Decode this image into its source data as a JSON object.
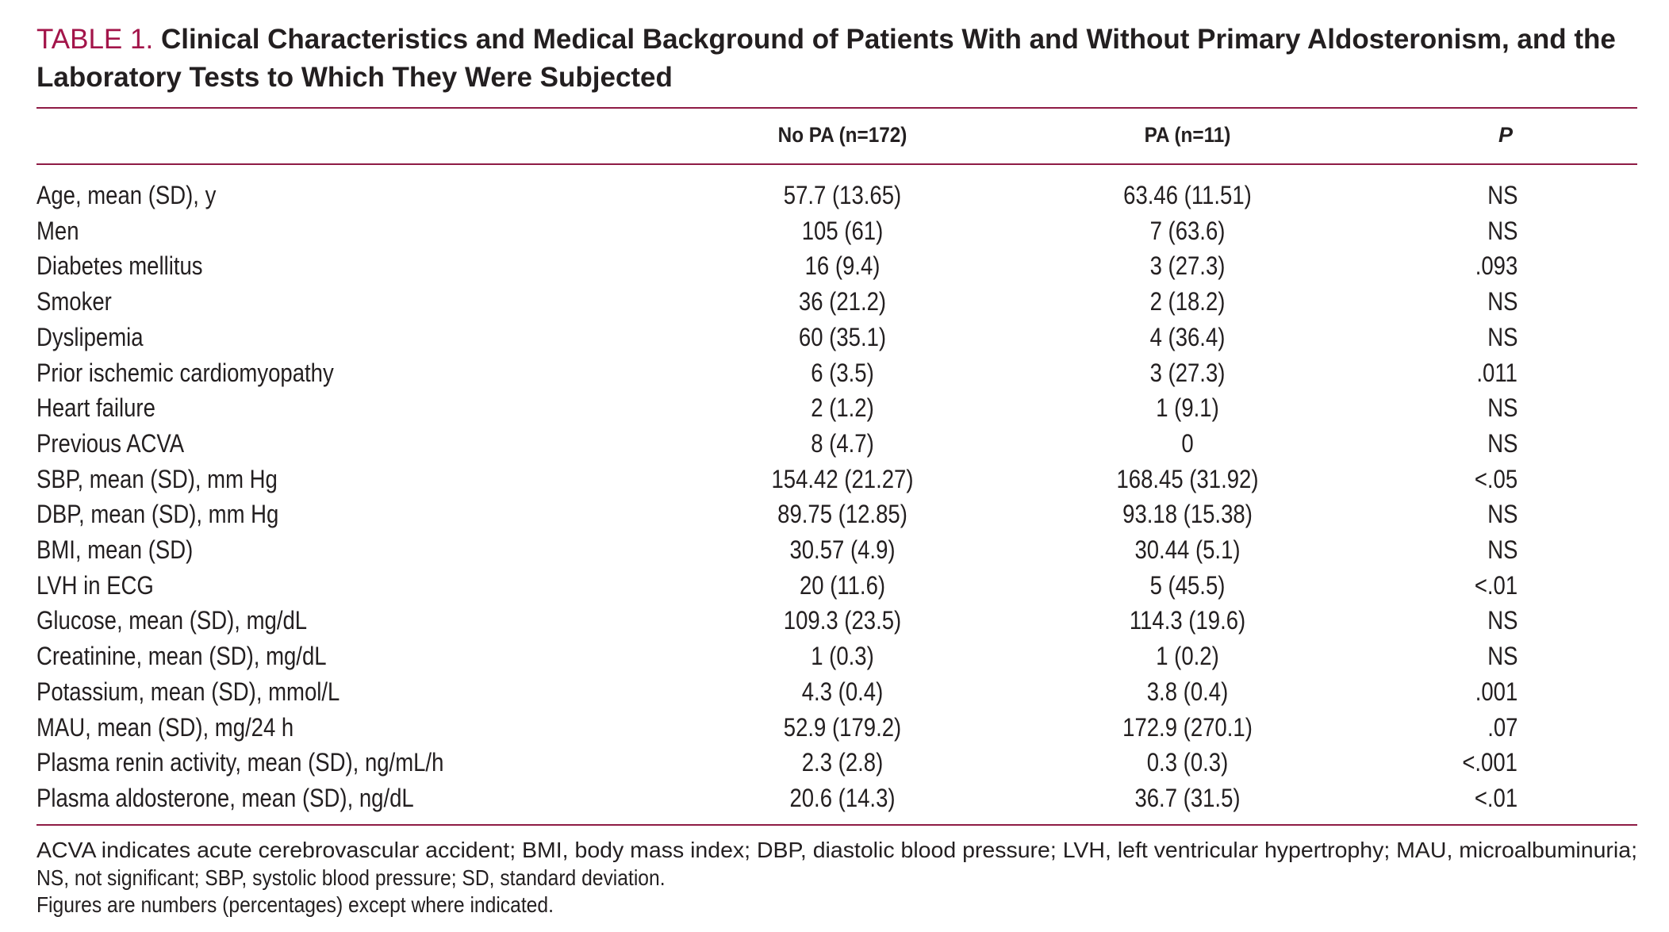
{
  "title": {
    "label": "TABLE 1.",
    "text": "Clinical Characteristics and Medical Background of Patients With and Without Primary Aldosteronism, and the Laboratory Tests to Which They Were Subjected"
  },
  "table": {
    "header": [
      "No PA (n=172)",
      "PA (n=11)",
      "P"
    ],
    "rows": [
      [
        "Age, mean (SD), y",
        "57.7 (13.65)",
        "63.46 (11.51)",
        "NS"
      ],
      [
        "Men",
        "105 (61)",
        "7 (63.6)",
        "NS"
      ],
      [
        "Diabetes mellitus",
        "16 (9.4)",
        "3 (27.3)",
        ".093"
      ],
      [
        "Smoker",
        "36 (21.2)",
        "2 (18.2)",
        "NS"
      ],
      [
        "Dyslipemia",
        "60 (35.1)",
        "4 (36.4)",
        "NS"
      ],
      [
        "Prior ischemic cardiomyopathy",
        "6 (3.5)",
        "3 (27.3)",
        ".011"
      ],
      [
        "Heart failure",
        "2 (1.2)",
        "1 (9.1)",
        "NS"
      ],
      [
        "Previous ACVA",
        "8 (4.7)",
        "0",
        "NS"
      ],
      [
        "SBP, mean (SD), mm  Hg",
        "154.42 (21.27)",
        "168.45 (31.92)",
        "<.05"
      ],
      [
        "DBP, mean (SD), mm  Hg",
        "89.75 (12.85)",
        "93.18 (15.38)",
        "NS"
      ],
      [
        "BMI, mean (SD)",
        "30.57 (4.9)",
        "30.44 (5.1)",
        "NS"
      ],
      [
        "LVH in ECG",
        "20 (11.6)",
        "5 (45.5)",
        "<.01"
      ],
      [
        "Glucose, mean (SD), mg/dL",
        "109.3 (23.5)",
        "114.3 (19.6)",
        "NS"
      ],
      [
        "Creatinine, mean (SD), mg/dL",
        "1 (0.3)",
        "1 (0.2)",
        "NS"
      ],
      [
        "Potassium, mean (SD), mmol/L",
        "4.3 (0.4)",
        "3.8 (0.4)",
        ".001"
      ],
      [
        "MAU, mean (SD), mg/24 h",
        "52.9 (179.2)",
        "172.9 (270.1)",
        ".07"
      ],
      [
        "Plasma renin activity, mean (SD), ng/mL/h",
        "2.3 (2.8)",
        "0.3 (0.3)",
        "<.001"
      ],
      [
        "Plasma aldosterone, mean (SD), ng/dL",
        "20.6 (14.3)",
        "36.7 (31.5)",
        "<.01"
      ]
    ]
  },
  "footnotes": [
    "ACVA indicates acute cerebrovascular accident; BMI, body mass index; DBP, diastolic blood pressure; LVH, left ventricular hypertrophy; MAU, microalbuminuria;",
    "NS, not significant; SBP, systolic blood pressure; SD, standard deviation.",
    "Figures are numbers (percentages) except where indicated."
  ]
}
